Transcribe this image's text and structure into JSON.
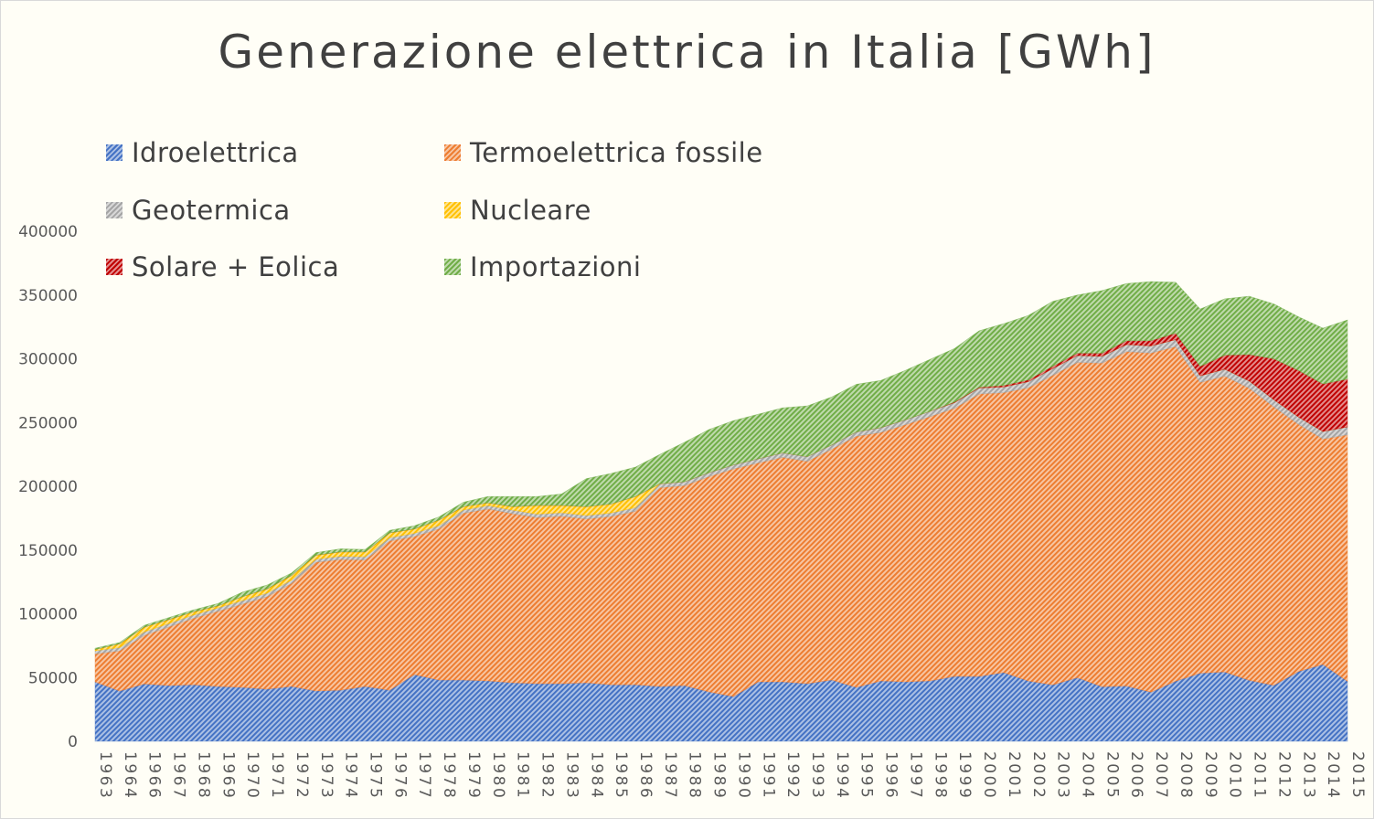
{
  "chart_data": {
    "type": "area",
    "stacked": true,
    "title": "Generazione elettrica in Italia [GWh]",
    "xlabel": "",
    "ylabel": "",
    "ylim": [
      0,
      400000
    ],
    "yticks": [
      0,
      50000,
      100000,
      150000,
      200000,
      250000,
      300000,
      350000,
      400000
    ],
    "grid": false,
    "legend_position": "top-left",
    "categories": [
      "1963",
      "1964",
      "1966",
      "1967",
      "1968",
      "1969",
      "1970",
      "1971",
      "1972",
      "1973",
      "1974",
      "1975",
      "1976",
      "1977",
      "1978",
      "1979",
      "1980",
      "1981",
      "1982",
      "1983",
      "1984",
      "1985",
      "1986",
      "1987",
      "1988",
      "1989",
      "1990",
      "1991",
      "1992",
      "1993",
      "1994",
      "1995",
      "1996",
      "1997",
      "1998",
      "1999",
      "2000",
      "2001",
      "2002",
      "2003",
      "2004",
      "2005",
      "2006",
      "2007",
      "2008",
      "2009",
      "2010",
      "2011",
      "2012",
      "2013",
      "2014",
      "2015"
    ],
    "series": [
      {
        "name": "Idroelettrica",
        "color": "#4472c4",
        "values": [
          46600,
          39400,
          45000,
          43700,
          44400,
          43000,
          42300,
          40900,
          43000,
          39400,
          40100,
          43000,
          40100,
          52300,
          48000,
          48000,
          47300,
          45900,
          45200,
          45200,
          45900,
          44400,
          44400,
          43000,
          43700,
          38700,
          35100,
          46600,
          46600,
          45200,
          48000,
          42300,
          47300,
          46600,
          47300,
          51000,
          50900,
          54000,
          47300,
          44300,
          49900,
          42900,
          43400,
          38500,
          47200,
          53400,
          54400,
          47800,
          43900,
          54700,
          60300,
          47000
        ]
      },
      {
        "name": "Termoelettrica fossile",
        "color": "#ed7d31",
        "values": [
          21900,
          31600,
          38100,
          46000,
          52000,
          58900,
          65300,
          72500,
          80800,
          101000,
          102500,
          99200,
          117100,
          108300,
          118600,
          130900,
          134900,
          132700,
          130300,
          131300,
          128500,
          131900,
          136000,
          155900,
          156800,
          168900,
          178500,
          171700,
          176100,
          174300,
          181100,
          196900,
          194900,
          201700,
          207300,
          210200,
          221500,
          219400,
          230000,
          242700,
          247200,
          253700,
          262200,
          266000,
          262300,
          228000,
          232000,
          229100,
          218400,
          194000,
          176800,
          193300
        ]
      },
      {
        "name": "Geotermica",
        "color": "#a5a5a5",
        "values": [
          2500,
          2500,
          2600,
          2600,
          2600,
          2700,
          2700,
          2700,
          2600,
          2500,
          2500,
          2500,
          2500,
          2500,
          2500,
          2500,
          2700,
          2700,
          2700,
          2700,
          2700,
          2700,
          2800,
          2900,
          3000,
          3100,
          3200,
          3200,
          3500,
          3700,
          3400,
          3400,
          3800,
          3900,
          4200,
          4400,
          4700,
          4500,
          4700,
          5300,
          5400,
          5300,
          5500,
          5600,
          5500,
          5300,
          5400,
          5700,
          5600,
          5700,
          5900,
          6200
        ]
      },
      {
        "name": "Nucleare",
        "color": "#ffc000",
        "values": [
          1000,
          3000,
          3800,
          3200,
          2500,
          1600,
          3200,
          3400,
          3600,
          3100,
          3400,
          3800,
          3800,
          3400,
          4400,
          2600,
          2100,
          2700,
          6800,
          5800,
          6900,
          7000,
          8800,
          200,
          0,
          0,
          0,
          0,
          0,
          0,
          0,
          0,
          0,
          0,
          0,
          0,
          0,
          0,
          0,
          0,
          0,
          0,
          0,
          0,
          0,
          0,
          0,
          0,
          0,
          0,
          0,
          0
        ]
      },
      {
        "name": "Solare + Eolica",
        "color": "#c00000",
        "values": [
          0,
          0,
          0,
          0,
          0,
          0,
          0,
          0,
          0,
          0,
          0,
          0,
          0,
          0,
          0,
          0,
          0,
          0,
          0,
          0,
          0,
          0,
          0,
          0,
          0,
          0,
          0,
          0,
          0,
          0,
          0,
          0,
          0,
          0,
          0,
          400,
          560,
          1200,
          1400,
          1800,
          1900,
          2400,
          3000,
          4100,
          5000,
          7300,
          11000,
          20700,
          32000,
          36500,
          37300,
          37600
        ]
      },
      {
        "name": "Importazioni",
        "color": "#70ad47",
        "values": [
          1000,
          1000,
          1500,
          1500,
          1500,
          1800,
          3500,
          3000,
          2000,
          2000,
          2500,
          2000,
          2000,
          2500,
          2500,
          3500,
          5000,
          8000,
          7000,
          9000,
          22000,
          24000,
          23000,
          23000,
          31000,
          33800,
          34700,
          35000,
          35300,
          39800,
          37500,
          37400,
          37000,
          38800,
          40700,
          42000,
          44300,
          48400,
          50600,
          50900,
          45600,
          49200,
          44900,
          46300,
          40000,
          45000,
          44200,
          45700,
          43100,
          42100,
          43700,
          46400
        ]
      }
    ]
  }
}
